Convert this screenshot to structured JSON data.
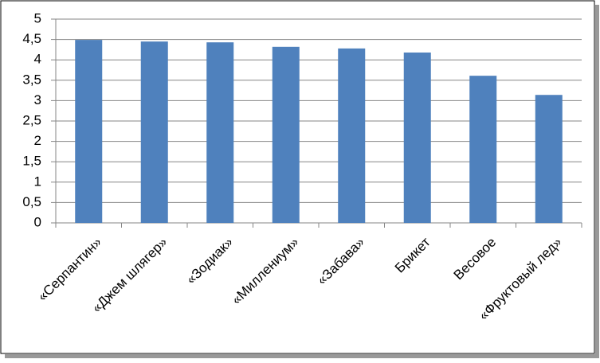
{
  "chart_data": {
    "type": "bar",
    "categories": [
      "«Серпантин»",
      "«Джем шлягер»",
      "«Зодиак»",
      "«Миллениум»",
      "«Забава»",
      "Брикет",
      "Весовое",
      "«Фруктовый лед»"
    ],
    "values": [
      4.49,
      4.45,
      4.43,
      4.32,
      4.28,
      4.18,
      3.61,
      3.14
    ],
    "color": "#4f81bd",
    "ylim": [
      0,
      5
    ],
    "yticks": [
      0,
      {
        "value": 0.5,
        "label": "0,5"
      },
      1,
      {
        "value": 1.5,
        "label": "1,5"
      },
      2,
      {
        "value": 2.5,
        "label": "2,5"
      },
      3,
      {
        "value": 3.5,
        "label": "3,5"
      },
      4,
      {
        "value": 4.5,
        "label": "4,5"
      },
      5
    ],
    "grid": true
  }
}
